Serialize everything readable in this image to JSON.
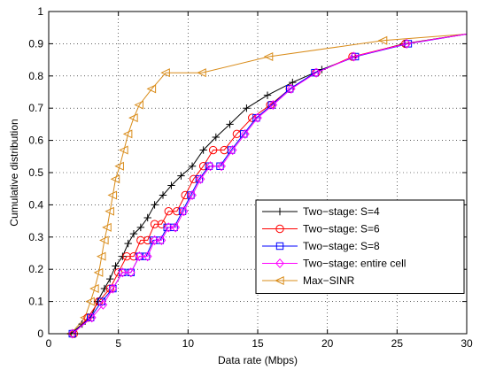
{
  "chart_data": {
    "type": "line",
    "title": "",
    "xlabel": "Data rate (Mbps)",
    "ylabel": "Cumulative distribution",
    "xlim": [
      0,
      30
    ],
    "ylim": [
      0,
      1
    ],
    "xticks": [
      0,
      5,
      10,
      15,
      20,
      25,
      30
    ],
    "yticks": [
      0,
      0.1,
      0.2,
      0.3,
      0.4,
      0.5,
      0.6,
      0.7,
      0.8,
      0.9,
      1
    ],
    "grid": "dotted",
    "legend_position": "lower-right",
    "series": [
      {
        "name": "Two−stage: S=4",
        "color": "#000000",
        "marker": "plus",
        "x": [
          1.6,
          2.4,
          3.0,
          3.5,
          4.0,
          4.4,
          4.8,
          5.3,
          5.7,
          6.1,
          6.6,
          7.1,
          7.6,
          8.2,
          8.8,
          9.5,
          10.3,
          11.1,
          12.0,
          13.0,
          14.2,
          15.7,
          17.5,
          19.6,
          22.0,
          25.5,
          30.0
        ],
        "y": [
          0.0,
          0.03,
          0.05,
          0.1,
          0.14,
          0.17,
          0.21,
          0.24,
          0.28,
          0.31,
          0.33,
          0.36,
          0.4,
          0.43,
          0.46,
          0.49,
          0.52,
          0.57,
          0.61,
          0.65,
          0.7,
          0.74,
          0.78,
          0.82,
          0.86,
          0.9,
          0.93
        ]
      },
      {
        "name": "Two−stage: S=6",
        "color": "#ff0000",
        "marker": "circle",
        "x": [
          1.8,
          2.8,
          3.6,
          4.4,
          5.0,
          5.6,
          6.1,
          6.6,
          7.1,
          7.6,
          8.1,
          8.6,
          9.2,
          9.8,
          10.4,
          11.1,
          11.8,
          12.6,
          13.5,
          14.6,
          15.9,
          17.3,
          19.2,
          21.8,
          25.6,
          30.0
        ],
        "y": [
          0.0,
          0.05,
          0.1,
          0.14,
          0.19,
          0.24,
          0.24,
          0.29,
          0.29,
          0.34,
          0.34,
          0.38,
          0.38,
          0.43,
          0.48,
          0.52,
          0.57,
          0.57,
          0.62,
          0.67,
          0.71,
          0.76,
          0.81,
          0.86,
          0.9,
          0.93
        ]
      },
      {
        "name": "Two−stage: S=8",
        "color": "#0000ff",
        "marker": "square",
        "x": [
          1.7,
          3.0,
          3.8,
          4.6,
          5.3,
          5.9,
          6.5,
          7.0,
          7.5,
          8.0,
          8.5,
          9.0,
          9.6,
          10.2,
          10.8,
          11.5,
          12.3,
          13.1,
          14.0,
          14.9,
          16.0,
          17.3,
          19.1,
          22.0,
          25.8,
          30.0
        ],
        "y": [
          0.0,
          0.05,
          0.1,
          0.14,
          0.19,
          0.19,
          0.24,
          0.24,
          0.29,
          0.29,
          0.33,
          0.33,
          0.38,
          0.43,
          0.48,
          0.52,
          0.52,
          0.57,
          0.62,
          0.67,
          0.71,
          0.76,
          0.81,
          0.86,
          0.9,
          0.93
        ]
      },
      {
        "name": "Two−stage: entire cell",
        "color": "#ff00ff",
        "marker": "diamond",
        "x": [
          1.7,
          3.1,
          3.9,
          4.6,
          5.3,
          5.9,
          6.5,
          7.1,
          7.6,
          8.1,
          8.6,
          9.1,
          9.7,
          10.3,
          10.9,
          11.6,
          12.4,
          13.2,
          14.1,
          15.0,
          16.1,
          17.4,
          19.2,
          21.9,
          25.7,
          30.0
        ],
        "y": [
          0.0,
          0.05,
          0.09,
          0.14,
          0.19,
          0.19,
          0.24,
          0.24,
          0.29,
          0.29,
          0.33,
          0.33,
          0.38,
          0.43,
          0.48,
          0.52,
          0.52,
          0.57,
          0.62,
          0.67,
          0.71,
          0.76,
          0.81,
          0.86,
          0.9,
          0.93
        ]
      },
      {
        "name": "Max−SINR",
        "color": "#d98c1a",
        "marker": "triangle-left",
        "x": [
          1.6,
          2.6,
          3.0,
          3.3,
          3.6,
          3.8,
          4.0,
          4.2,
          4.4,
          4.6,
          4.8,
          5.1,
          5.4,
          5.7,
          6.1,
          6.5,
          7.4,
          8.4,
          11.0,
          15.8,
          24.0,
          30.0
        ],
        "y": [
          0.0,
          0.05,
          0.1,
          0.14,
          0.19,
          0.24,
          0.29,
          0.33,
          0.38,
          0.43,
          0.48,
          0.52,
          0.57,
          0.62,
          0.67,
          0.71,
          0.76,
          0.81,
          0.81,
          0.86,
          0.91,
          0.93
        ]
      }
    ]
  }
}
